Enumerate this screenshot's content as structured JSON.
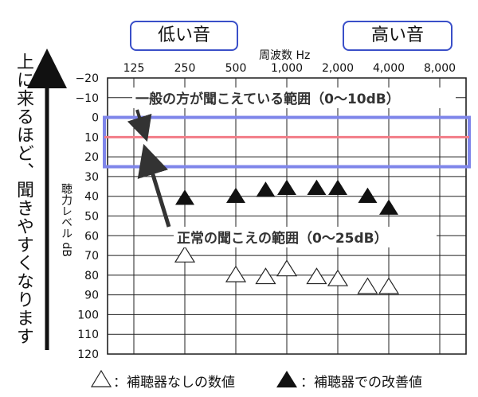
{
  "labels": {
    "low": "低い音",
    "high": "高い音",
    "freq_title": "周波数 Hz",
    "side": "上に来るほど、聞きやすくなります",
    "ylabel": "聴力レベル dB"
  },
  "legend": {
    "without": "：補聴器なしの数値",
    "with": "：補聴器での改善値"
  },
  "chart_data": {
    "type": "scatter",
    "x_categories": [
      "125",
      "250",
      "500",
      "1,000",
      "2,000",
      "4,000",
      "8,000"
    ],
    "y_ticks": [
      "−20",
      "−10",
      "0",
      "10",
      "20",
      "30",
      "40",
      "50",
      "60",
      "70",
      "80",
      "90",
      "100",
      "110",
      "120"
    ],
    "ylim": [
      -20,
      120
    ],
    "y_inverted": true,
    "normal_range": {
      "label": "正常の聞こえの範囲（0〜25dB）",
      "from": 0,
      "to": 25,
      "color": "#7f86ea"
    },
    "typical_line": {
      "label": "一般の方が聞こえている範囲（0〜10dB）",
      "value": 10,
      "color": "#f27c86"
    },
    "series": [
      {
        "marker": "open-triangle",
        "points": [
          {
            "x": 250,
            "y": 70
          },
          {
            "x": 500,
            "y": 80
          },
          {
            "x": 750,
            "y": 81
          },
          {
            "x": 1000,
            "y": 77
          },
          {
            "x": 1500,
            "y": 81
          },
          {
            "x": 2000,
            "y": 82
          },
          {
            "x": 3000,
            "y": 86
          },
          {
            "x": 4000,
            "y": 86
          }
        ]
      },
      {
        "marker": "filled-triangle",
        "points": [
          {
            "x": 250,
            "y": 41
          },
          {
            "x": 500,
            "y": 40
          },
          {
            "x": 750,
            "y": 37
          },
          {
            "x": 1000,
            "y": 36
          },
          {
            "x": 1500,
            "y": 36
          },
          {
            "x": 2000,
            "y": 36
          },
          {
            "x": 3000,
            "y": 40
          },
          {
            "x": 4000,
            "y": 46
          }
        ]
      }
    ]
  }
}
